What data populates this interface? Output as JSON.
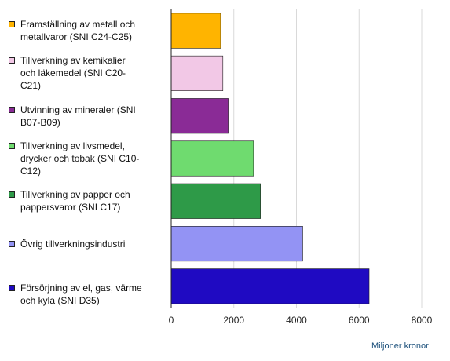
{
  "chart_data": {
    "type": "bar",
    "orientation": "horizontal",
    "categories": [
      "Framställning av metall och\nmetallvaror (SNI C24-C25)",
      "Tillverkning av kemikalier\noch läkemedel (SNI C20-\nC21)",
      "Utvinning av mineraler (SNI\nB07-B09)",
      "Tillverkning av livsmedel,\ndrycker och tobak (SNI C10-\nC12)",
      "Tillverkning av papper och\npappersvaror (SNI C17)",
      "Övrig tillverkningsindustri",
      "Försörjning av el, gas, värme\noch kyla (SNI D35)"
    ],
    "values": [
      1580,
      1650,
      1820,
      2630,
      2850,
      4200,
      6320
    ],
    "colors": [
      "#ffb400",
      "#f2c8e6",
      "#8a2b96",
      "#6fdb6f",
      "#2e9a48",
      "#9393f4",
      "#1f0ac2"
    ],
    "xlim": [
      0,
      8000
    ],
    "xticks": [
      "0",
      "2000",
      "4000",
      "6000",
      "8000"
    ],
    "xlabel": "Miljoner kronor",
    "grid": true,
    "legend": "left"
  }
}
